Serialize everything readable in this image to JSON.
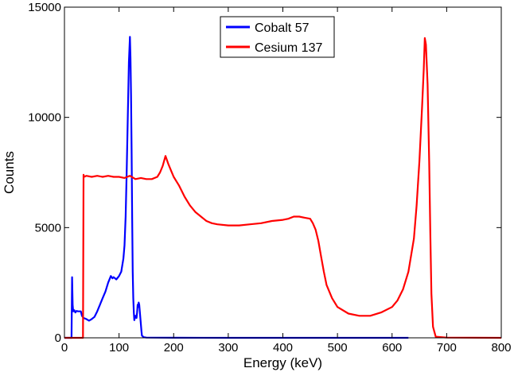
{
  "chart_data": {
    "type": "line",
    "xlabel": "Energy (keV)",
    "ylabel": "Counts",
    "xlim": [
      0,
      800
    ],
    "ylim": [
      0,
      15000
    ],
    "xticks": [
      "0",
      "100",
      "200",
      "300",
      "400",
      "500",
      "600",
      "700",
      "800"
    ],
    "yticks": [
      "0",
      "5000",
      "10000",
      "15000"
    ],
    "legend_placement": "top-center",
    "grid": false,
    "series": [
      {
        "name": "Cobalt 57",
        "color": "#0000ff",
        "x": [
          0,
          13,
          14,
          15,
          16,
          18,
          20,
          22,
          25,
          30,
          32,
          35,
          40,
          45,
          50,
          55,
          60,
          65,
          70,
          75,
          80,
          85,
          88,
          90,
          95,
          100,
          104,
          108,
          110,
          112,
          114,
          116,
          118,
          120,
          121,
          122,
          123,
          124,
          125,
          126,
          127,
          128,
          130,
          132,
          133,
          134,
          135,
          136,
          137,
          138,
          139,
          140,
          141,
          142,
          145,
          150,
          200,
          300,
          400,
          500,
          600,
          630
        ],
        "y": [
          0,
          0,
          2750,
          1500,
          1200,
          1250,
          1150,
          1220,
          1200,
          1200,
          1000,
          900,
          850,
          780,
          850,
          950,
          1200,
          1500,
          1800,
          2100,
          2500,
          2800,
          2700,
          2750,
          2650,
          2800,
          3000,
          3600,
          4200,
          5500,
          7500,
          10000,
          12500,
          13650,
          12700,
          11000,
          8500,
          5500,
          3000,
          1800,
          1150,
          800,
          1000,
          900,
          1150,
          1500,
          1400,
          1600,
          1500,
          1200,
          900,
          600,
          300,
          100,
          30,
          10,
          5,
          0,
          0,
          0,
          0,
          0
        ]
      },
      {
        "name": "Cesium 137",
        "color": "#ff0000",
        "x": [
          0,
          34,
          35,
          36,
          40,
          50,
          60,
          70,
          80,
          90,
          100,
          110,
          120,
          130,
          140,
          150,
          160,
          170,
          175,
          180,
          185,
          190,
          195,
          200,
          205,
          210,
          220,
          230,
          240,
          250,
          260,
          270,
          280,
          300,
          320,
          340,
          360,
          380,
          400,
          410,
          420,
          430,
          440,
          450,
          455,
          460,
          465,
          470,
          475,
          480,
          490,
          500,
          520,
          540,
          560,
          580,
          600,
          610,
          620,
          630,
          640,
          645,
          650,
          655,
          658,
          660,
          662,
          665,
          668,
          670,
          672,
          675,
          680,
          700,
          800
        ],
        "y": [
          0,
          0,
          7400,
          7300,
          7350,
          7300,
          7350,
          7300,
          7350,
          7300,
          7300,
          7250,
          7350,
          7200,
          7250,
          7200,
          7200,
          7300,
          7500,
          7800,
          8250,
          7900,
          7600,
          7300,
          7100,
          6900,
          6400,
          6000,
          5700,
          5500,
          5300,
          5200,
          5150,
          5100,
          5100,
          5150,
          5200,
          5300,
          5350,
          5400,
          5500,
          5500,
          5450,
          5400,
          5200,
          4900,
          4400,
          3700,
          3000,
          2400,
          1800,
          1400,
          1100,
          1000,
          1000,
          1150,
          1400,
          1700,
          2200,
          3000,
          4500,
          6000,
          8000,
          10500,
          12200,
          13600,
          13300,
          11500,
          8000,
          4800,
          2000,
          500,
          50,
          10,
          0
        ]
      }
    ]
  }
}
